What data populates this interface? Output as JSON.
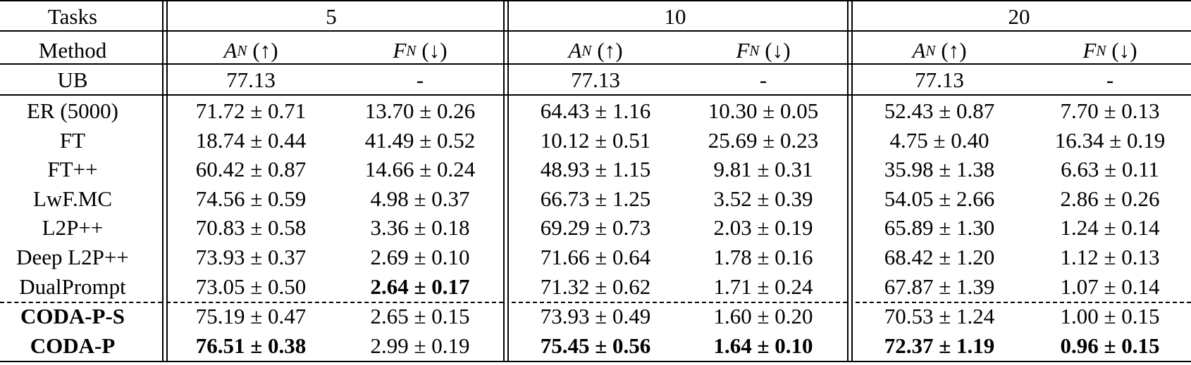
{
  "header": {
    "tasks_label": "Tasks",
    "task_counts": [
      "5",
      "10",
      "20"
    ],
    "method_label": "Method",
    "metric_an": "A",
    "metric_fn": "F",
    "metric_sub": "N",
    "up_arrow": "(↑)",
    "down_arrow": "(↓)"
  },
  "upper_bound": {
    "method": "UB",
    "values": [
      "77.13",
      "-",
      "77.13",
      "-",
      "77.13",
      "-"
    ]
  },
  "rows": [
    {
      "method": "ER (5000)",
      "values": [
        "71.72 ± 0.71",
        "13.70 ± 0.26",
        "64.43 ± 1.16",
        "10.30 ± 0.05",
        "52.43 ± 0.87",
        "7.70 ± 0.13"
      ]
    },
    {
      "method": "FT",
      "values": [
        "18.74 ± 0.44",
        "41.49 ± 0.52",
        "10.12 ± 0.51",
        "25.69 ± 0.23",
        "4.75 ± 0.40",
        "16.34 ± 0.19"
      ]
    },
    {
      "method": "FT++",
      "values": [
        "60.42 ± 0.87",
        "14.66 ± 0.24",
        "48.93 ± 1.15",
        "9.81 ± 0.31",
        "35.98 ± 1.38",
        "6.63 ± 0.11"
      ]
    },
    {
      "method": "LwF.MC",
      "values": [
        "74.56 ± 0.59",
        "4.98 ± 0.37",
        "66.73 ± 1.25",
        "3.52 ± 0.39",
        "54.05 ± 2.66",
        "2.86 ± 0.26"
      ]
    },
    {
      "method": "L2P++",
      "values": [
        "70.83 ± 0.58",
        "3.36 ± 0.18",
        "69.29 ± 0.73",
        "2.03 ± 0.19",
        "65.89 ± 1.30",
        "1.24 ± 0.14"
      ]
    },
    {
      "method": "Deep L2P++",
      "values": [
        "73.93 ± 0.37",
        "2.69 ± 0.10",
        "71.66 ± 0.64",
        "1.78 ± 0.16",
        "68.42 ± 1.20",
        "1.12 ± 0.13"
      ]
    },
    {
      "method": "DualPrompt",
      "values": [
        "73.05 ± 0.50",
        "2.64 ± 0.17",
        "71.32 ± 0.62",
        "1.71 ± 0.24",
        "67.87 ± 1.39",
        "1.07 ± 0.14"
      ]
    }
  ],
  "ours": [
    {
      "method": "CODA-P-S",
      "values": [
        "75.19 ± 0.47",
        "2.65 ± 0.15",
        "73.93 ± 0.49",
        "1.60 ± 0.20",
        "70.53 ± 1.24",
        "1.00 ± 0.15"
      ]
    },
    {
      "method": "CODA-P",
      "values": [
        "76.51 ± 0.38",
        "2.99 ± 0.19",
        "75.45 ± 0.56",
        "1.64 ± 0.10",
        "72.37 ± 1.19",
        "0.96 ± 0.15"
      ]
    }
  ]
}
